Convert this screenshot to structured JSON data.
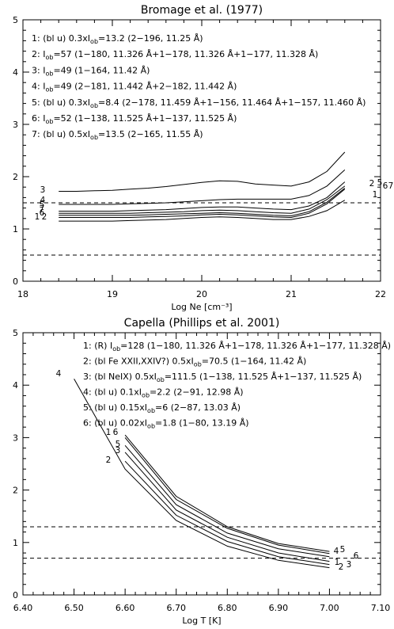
{
  "chart_data": [
    {
      "type": "line",
      "title": "Bromage et al. (1977)",
      "xlabel": "Log Ne [cm⁻³]",
      "ylabel": "",
      "xlim": [
        18,
        22
      ],
      "ylim": [
        0,
        5
      ],
      "x_ticks": [
        "18",
        "19",
        "20",
        "21",
        "22"
      ],
      "y_ticks": [
        "0",
        "1",
        "2",
        "3",
        "4",
        "5"
      ],
      "hlines": [
        1.5,
        0.5
      ],
      "legend": [
        "1: (bl u) 0.3xIₒₕ=13.2 (2−196, 11.25 Å)",
        "2: Iₒₕ=57 (1−180, 11.326 Å+1−178, 11.326 Å+1−177, 11.328 Å)",
        "3: Iₒₕ=49 (1−164, 11.42 Å)",
        "4: Iₒₕ=49 (2−181, 11.442 Å+2−182, 11.442 Å)",
        "5: (bl u) 0.3xIₒₕ=8.4 (2−178, 11.459 Å+1−156, 11.464 Å+1−157, 11.460 Å)",
        "6: Iₒₕ=52 (1−138, 11.525 Å+1−137, 11.525 Å)",
        "7: (bl u) 0.5xIₒₕ=13.5 (2−165, 11.55 Å)"
      ],
      "series": [
        {
          "label": "3",
          "x": [
            18.4,
            18.6,
            18.8,
            19.0,
            19.2,
            19.4,
            19.6,
            19.8,
            20.0,
            20.2,
            20.4,
            20.6,
            20.8,
            21.0,
            21.2,
            21.4,
            21.6
          ],
          "y": [
            1.72,
            1.72,
            1.73,
            1.74,
            1.76,
            1.78,
            1.81,
            1.85,
            1.89,
            1.92,
            1.91,
            1.86,
            1.84,
            1.82,
            1.9,
            2.1,
            2.47
          ]
        },
        {
          "label": "4",
          "x": [
            18.4,
            18.6,
            18.8,
            19.0,
            19.2,
            19.4,
            19.6,
            19.8,
            20.0,
            20.2,
            20.4,
            20.6,
            20.8,
            21.0,
            21.2,
            21.4,
            21.6
          ],
          "y": [
            1.47,
            1.47,
            1.47,
            1.47,
            1.48,
            1.49,
            1.5,
            1.52,
            1.54,
            1.56,
            1.57,
            1.57,
            1.57,
            1.57,
            1.64,
            1.82,
            2.13
          ]
        },
        {
          "label": "2",
          "x": [
            18.4,
            18.6,
            18.8,
            19.0,
            19.2,
            19.4,
            19.6,
            19.8,
            20.0,
            20.2,
            20.4,
            20.6,
            20.8,
            21.0,
            21.2,
            21.4,
            21.6
          ],
          "y": [
            1.34,
            1.34,
            1.34,
            1.34,
            1.35,
            1.36,
            1.37,
            1.39,
            1.41,
            1.42,
            1.42,
            1.4,
            1.38,
            1.37,
            1.44,
            1.6,
            1.9
          ]
        },
        {
          "label": "5",
          "x": [
            18.4,
            18.6,
            18.8,
            19.0,
            19.2,
            19.4,
            19.6,
            19.8,
            20.0,
            20.2,
            20.4,
            20.6,
            20.8,
            21.0,
            21.2,
            21.4,
            21.6
          ],
          "y": [
            1.3,
            1.3,
            1.3,
            1.3,
            1.3,
            1.31,
            1.32,
            1.33,
            1.35,
            1.36,
            1.35,
            1.33,
            1.31,
            1.3,
            1.38,
            1.56,
            1.82
          ]
        },
        {
          "label": "6",
          "x": [
            18.4,
            18.6,
            18.8,
            19.0,
            19.2,
            19.4,
            19.6,
            19.8,
            20.0,
            20.2,
            20.4,
            20.6,
            20.8,
            21.0,
            21.2,
            21.4,
            21.6
          ],
          "y": [
            1.26,
            1.26,
            1.26,
            1.26,
            1.26,
            1.27,
            1.28,
            1.29,
            1.3,
            1.31,
            1.3,
            1.28,
            1.26,
            1.25,
            1.33,
            1.51,
            1.78
          ]
        },
        {
          "label": "7",
          "x": [
            18.4,
            18.6,
            18.8,
            19.0,
            19.2,
            19.4,
            19.6,
            19.8,
            20.0,
            20.2,
            20.4,
            20.6,
            20.8,
            21.0,
            21.2,
            21.4,
            21.6
          ],
          "y": [
            1.22,
            1.22,
            1.22,
            1.22,
            1.22,
            1.23,
            1.24,
            1.25,
            1.27,
            1.28,
            1.27,
            1.25,
            1.23,
            1.22,
            1.3,
            1.48,
            1.76
          ]
        },
        {
          "label": "1",
          "x": [
            18.4,
            18.6,
            18.8,
            19.0,
            19.2,
            19.4,
            19.6,
            19.8,
            20.0,
            20.2,
            20.4,
            20.6,
            20.8,
            21.0,
            21.2,
            21.4,
            21.6
          ],
          "y": [
            1.15,
            1.15,
            1.15,
            1.15,
            1.16,
            1.17,
            1.18,
            1.2,
            1.22,
            1.23,
            1.22,
            1.2,
            1.18,
            1.18,
            1.24,
            1.35,
            1.55
          ]
        }
      ]
    },
    {
      "type": "line",
      "title": "Capella (Phillips et al. 2001)",
      "xlabel": "Log T [K]",
      "ylabel": "",
      "xlim": [
        6.4,
        7.1
      ],
      "ylim": [
        0,
        5
      ],
      "x_ticks": [
        "6.40",
        "6.50",
        "6.60",
        "6.70",
        "6.80",
        "6.90",
        "7.00",
        "7.10"
      ],
      "y_ticks": [
        "0",
        "1",
        "2",
        "3",
        "4",
        "5"
      ],
      "hlines": [
        1.3,
        0.7
      ],
      "legend": [
        "1: (R) Iₒₕ=128 (1−180, 11.326 Å+1−178, 11.326 Å+1−177, 11.328 Å)",
        "2: (bl Fe XXII,XXIV?) 0.5xIₒₕ=70.5 (1−164, 11.42 Å)",
        "3: (bl NeIX) 0.5xIₒₕ=111.5 (1−138, 11.525 Å+1−137, 11.525 Å)",
        "4: (bl u) 0.1xIₒₕ=2.2 (2−91, 12.98 Å)",
        "5: (bl u) 0.15xIₒₕ=6 (2−87, 13.03 Å)",
        "6: (bl u) 0.02xIₒₕ=1.8 (1−80, 13.19 Å)"
      ],
      "series": [
        {
          "label": "4",
          "x": [
            6.5,
            6.6,
            6.7,
            6.8,
            6.9,
            7.0
          ],
          "y": [
            4.12,
            2.4,
            1.42,
            0.93,
            0.66,
            0.52
          ]
        },
        {
          "label": "1",
          "x": [
            6.6,
            6.7,
            6.8,
            6.9,
            7.0
          ],
          "y": [
            3.05,
            1.88,
            1.3,
            0.98,
            0.83
          ]
        },
        {
          "label": "6",
          "x": [
            6.6,
            6.7,
            6.8,
            6.9,
            7.0
          ],
          "y": [
            3.0,
            1.82,
            1.27,
            0.95,
            0.79
          ]
        },
        {
          "label": "5",
          "x": [
            6.6,
            6.7,
            6.8,
            6.9,
            7.0
          ],
          "y": [
            2.85,
            1.72,
            1.18,
            0.88,
            0.73
          ]
        },
        {
          "label": "3",
          "x": [
            6.6,
            6.7,
            6.8,
            6.9,
            7.0
          ],
          "y": [
            2.72,
            1.62,
            1.1,
            0.8,
            0.64
          ]
        },
        {
          "label": "2",
          "x": [
            6.6,
            6.7,
            6.8,
            6.9,
            7.0
          ],
          "y": [
            2.55,
            1.52,
            1.02,
            0.73,
            0.58
          ]
        }
      ]
    }
  ]
}
